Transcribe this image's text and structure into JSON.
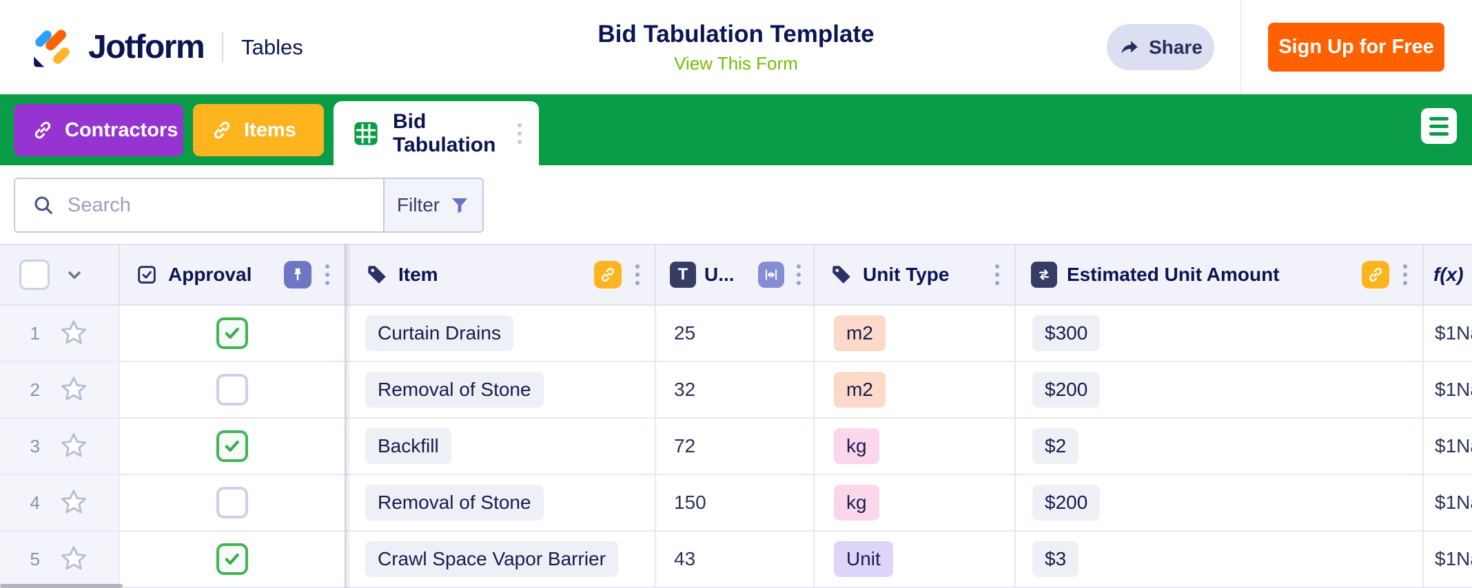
{
  "header": {
    "brand": "Jotform",
    "product": "Tables",
    "title": "Bid Tabulation Template",
    "view_form_link": "View This Form",
    "share_button": "Share",
    "signup_button": "Sign Up for Free"
  },
  "tab_bar": {
    "tabs": [
      {
        "label": "Contractors",
        "color": "#9634d1",
        "icon": "link-icon",
        "active": false
      },
      {
        "label": "Items",
        "color": "#fdb41e",
        "icon": "link-icon",
        "active": false
      },
      {
        "label": "Bid Tabulation",
        "color": "#ffffff",
        "icon": "grid-icon",
        "active": true
      }
    ]
  },
  "toolbar": {
    "search_placeholder": "Search",
    "filter_label": "Filter"
  },
  "table": {
    "header": {
      "approval": "Approval",
      "item": "Item",
      "unit": "U...",
      "unit_type": "Unit Type",
      "amount": "Estimated Unit Amount",
      "formula": "f(x)"
    },
    "rows": [
      {
        "num": "1",
        "approved": true,
        "item": "Curtain Drains",
        "unit": "25",
        "unit_type": "m2",
        "unit_type_color": "#fcd9c9",
        "amount": "$300",
        "formula": "$1Na"
      },
      {
        "num": "2",
        "approved": false,
        "item": "Removal of Stone",
        "unit": "32",
        "unit_type": "m2",
        "unit_type_color": "#fcd9c9",
        "amount": "$200",
        "formula": "$1Na"
      },
      {
        "num": "3",
        "approved": true,
        "item": "Backfill",
        "unit": "72",
        "unit_type": "kg",
        "unit_type_color": "#fbd7ec",
        "amount": "$2",
        "formula": "$1Na"
      },
      {
        "num": "4",
        "approved": false,
        "item": "Removal of Stone",
        "unit": "150",
        "unit_type": "kg",
        "unit_type_color": "#fbd7ec",
        "amount": "$200",
        "formula": "$1Na"
      },
      {
        "num": "5",
        "approved": true,
        "item": "Crawl Space Vapor Barrier",
        "unit": "43",
        "unit_type": "Unit",
        "unit_type_color": "#ded5f9",
        "amount": "$3",
        "formula": "$1Na"
      }
    ]
  },
  "colors": {
    "brand_navy": "#0a1551",
    "tab_bar_green": "#0a9d47",
    "contractors_purple": "#9634d1",
    "items_amber": "#fdb41e",
    "signup_orange": "#ff6100",
    "view_form_green": "#78bb07",
    "share_pill": "#dcdff2",
    "pin_badge": "#6f77c5",
    "resize_badge": "#858dd4",
    "link_badge": "#fdb41e",
    "chip_gray": "#eef0f6",
    "unit_type_m2": "#fcd9c9",
    "unit_type_kg": "#fbd7ec",
    "unit_type_unit": "#ded5f9",
    "checkbox_checked": "#43b453",
    "header_bg": "#f2f2fa"
  }
}
